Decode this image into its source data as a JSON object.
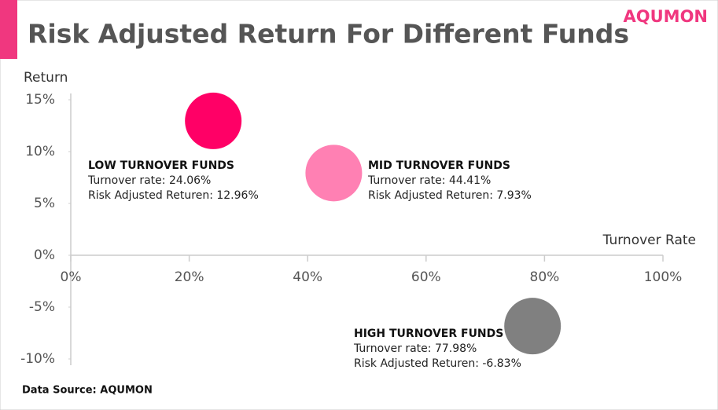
{
  "brand": "AQUMON",
  "chart_data": {
    "type": "scatter",
    "title": "Risk Adjusted Return For Different Funds",
    "y_label": "Return",
    "x_label": "Turnover Rate",
    "xlim": [
      0,
      100
    ],
    "xticks": [
      {
        "value": 0,
        "label": "0%"
      },
      {
        "value": 20,
        "label": "20%"
      },
      {
        "value": 40,
        "label": "40%"
      },
      {
        "value": 60,
        "label": "60%"
      },
      {
        "value": 80,
        "label": "80%"
      },
      {
        "value": 100,
        "label": "100%"
      }
    ],
    "ylim": [
      -10,
      15
    ],
    "yticks": [
      {
        "value": -10,
        "label": "-10%"
      },
      {
        "value": -5,
        "label": "-5%"
      },
      {
        "value": 0,
        "label": "0%"
      },
      {
        "value": 5,
        "label": "5%"
      },
      {
        "value": 10,
        "label": "10%"
      },
      {
        "value": 15,
        "label": "15%"
      }
    ],
    "series": [
      {
        "name": "LOW TURNOVER FUNDS",
        "color": "#ff0066",
        "x": [
          24.06
        ],
        "values": [
          12.96
        ],
        "labels": [
          "Turnover rate: 24.06%",
          "Risk Adjusted Returen: 12.96%"
        ]
      },
      {
        "name": "MID TURNOVER FUNDS",
        "color": "#ff80b3",
        "x": [
          44.41
        ],
        "values": [
          7.93
        ],
        "labels": [
          "Turnover rate: 44.41%",
          "Risk Adjusted Returen: 7.93%"
        ]
      },
      {
        "name": "HIGH TURNOVER FUNDS",
        "color": "#808080",
        "x": [
          77.98
        ],
        "values": [
          -6.83
        ],
        "labels": [
          "Turnover rate: 77.98%",
          "Risk Adjusted Returen: -6.83%"
        ]
      }
    ],
    "source": "Data Source: AQUMON"
  }
}
